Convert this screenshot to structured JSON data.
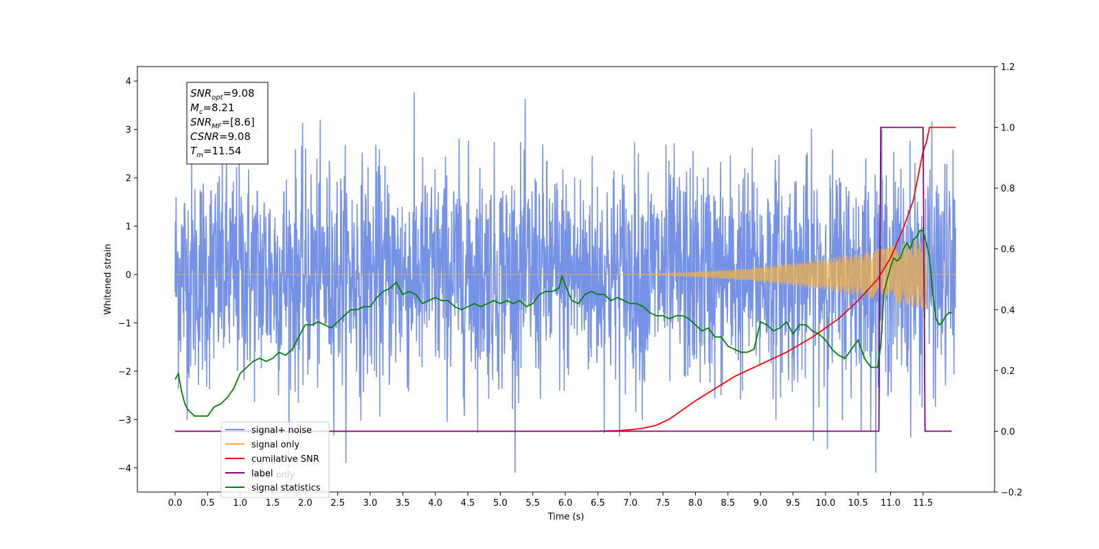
{
  "chart_data": {
    "type": "line",
    "xlabel": "Time (s)",
    "ylabel_left": "Whitened strain",
    "ylabel_right": "",
    "xlim": [
      -0.58,
      12.6
    ],
    "ylim_left": [
      -4.5,
      4.3
    ],
    "ylim_right": [
      -0.2,
      1.2
    ],
    "x_ticks": [
      0.0,
      0.5,
      1.0,
      1.5,
      2.0,
      2.5,
      3.0,
      3.5,
      4.0,
      4.5,
      5.0,
      5.5,
      6.0,
      6.5,
      7.0,
      7.5,
      8.0,
      8.5,
      9.0,
      9.5,
      10.0,
      10.5,
      11.0,
      11.5
    ],
    "x_tick_labels": [
      "0.0",
      "0.5",
      "1.0",
      "1.5",
      "2.0",
      "2.5",
      "3.0",
      "3.5",
      "4.0",
      "4.5",
      "5.0",
      "5.5",
      "6.0",
      "6.5",
      "7.0",
      "7.5",
      "8.0",
      "8.5",
      "9.0",
      "9.5",
      "10.0",
      "10.5",
      "11.0",
      "11.5"
    ],
    "y_left_ticks": [
      4,
      3,
      2,
      1,
      0,
      -1,
      -2,
      -3,
      -4
    ],
    "y_left_tick_labels": [
      "4",
      "3",
      "2",
      "1",
      "0",
      "−1",
      "−2",
      "−3",
      "−4"
    ],
    "y_right_ticks": [
      1.2,
      1.0,
      0.8,
      0.6,
      0.4,
      0.2,
      0.0,
      -0.2
    ],
    "y_right_tick_labels": [
      "1.2",
      "1.0",
      "0.8",
      "0.6",
      "0.4",
      "0.2",
      "0.0",
      "−0.2"
    ],
    "grid": false,
    "legend_position": "bottom-left",
    "annotation": {
      "lines": [
        {
          "base": "SNR",
          "sub": "opt",
          "rest": "=9.08"
        },
        {
          "base": "M",
          "sub": "c",
          "rest": "=8.21"
        },
        {
          "base": "SNR",
          "sub": "MF",
          "rest": "=[8.6]"
        },
        {
          "base": "CSNR",
          "sub": "",
          "rest": "=9.08"
        },
        {
          "base": "T",
          "sub": "m",
          "rest": "=11.54"
        }
      ]
    },
    "series": [
      {
        "name": "signal+ noise",
        "axis": "left",
        "color": "#6f8ce6",
        "note_noise_amplitude": 1.15,
        "x_range": [
          0.0,
          12.0
        ]
      },
      {
        "name": "signal only",
        "axis": "left",
        "color": "#f5b041",
        "chirp_start": 6.5,
        "chirp_end": 11.55,
        "peak_envelope": 0.75
      },
      {
        "name": "cumilative SNR",
        "axis": "right",
        "color": "#ff0000",
        "x": [
          0.0,
          6.5,
          6.8,
          7.0,
          7.2,
          7.4,
          7.6,
          7.8,
          8.0,
          8.3,
          8.6,
          9.0,
          9.4,
          9.8,
          10.2,
          10.5,
          10.8,
          11.0,
          11.2,
          11.35,
          11.5,
          11.55,
          11.6,
          12.0
        ],
        "values": [
          0.0,
          0.0,
          0.002,
          0.005,
          0.01,
          0.02,
          0.04,
          0.07,
          0.1,
          0.14,
          0.18,
          0.22,
          0.26,
          0.31,
          0.37,
          0.43,
          0.5,
          0.57,
          0.67,
          0.76,
          0.92,
          0.95,
          1.0,
          1.0
        ]
      },
      {
        "name": "label",
        "axis": "right",
        "color": "#800080",
        "x": [
          0.0,
          10.82,
          10.85,
          11.5,
          11.53,
          11.94
        ],
        "values": [
          0.0,
          0.0,
          1.0,
          1.0,
          0.0,
          0.0
        ]
      },
      {
        "name": "signal statistics",
        "axis": "right",
        "color": "#008000",
        "x": [
          0.0,
          0.05,
          0.1,
          0.15,
          0.2,
          0.3,
          0.4,
          0.5,
          0.6,
          0.7,
          0.8,
          0.9,
          1.0,
          1.1,
          1.2,
          1.3,
          1.4,
          1.5,
          1.6,
          1.7,
          1.8,
          1.9,
          2.0,
          2.1,
          2.2,
          2.3,
          2.4,
          2.5,
          2.6,
          2.7,
          2.8,
          2.9,
          3.0,
          3.1,
          3.2,
          3.3,
          3.4,
          3.5,
          3.6,
          3.7,
          3.8,
          3.9,
          4.0,
          4.1,
          4.2,
          4.3,
          4.4,
          4.5,
          4.6,
          4.7,
          4.8,
          4.9,
          5.0,
          5.1,
          5.2,
          5.3,
          5.4,
          5.5,
          5.6,
          5.7,
          5.8,
          5.9,
          5.95,
          6.0,
          6.1,
          6.2,
          6.3,
          6.4,
          6.5,
          6.6,
          6.7,
          6.8,
          6.9,
          7.0,
          7.1,
          7.2,
          7.3,
          7.4,
          7.5,
          7.6,
          7.7,
          7.8,
          7.9,
          8.0,
          8.1,
          8.2,
          8.3,
          8.4,
          8.5,
          8.6,
          8.7,
          8.8,
          8.9,
          9.0,
          9.1,
          9.2,
          9.3,
          9.4,
          9.5,
          9.6,
          9.7,
          9.8,
          9.9,
          10.0,
          10.1,
          10.2,
          10.3,
          10.4,
          10.5,
          10.6,
          10.7,
          10.8,
          10.85,
          10.9,
          11.0,
          11.05,
          11.1,
          11.15,
          11.2,
          11.25,
          11.3,
          11.35,
          11.4,
          11.45,
          11.5,
          11.55,
          11.6,
          11.65,
          11.7,
          11.75,
          11.8,
          11.85,
          11.9,
          11.95
        ],
        "values": [
          0.17,
          0.19,
          0.13,
          0.09,
          0.07,
          0.05,
          0.05,
          0.05,
          0.08,
          0.09,
          0.11,
          0.14,
          0.19,
          0.21,
          0.23,
          0.24,
          0.23,
          0.24,
          0.26,
          0.25,
          0.27,
          0.31,
          0.35,
          0.35,
          0.36,
          0.35,
          0.34,
          0.36,
          0.38,
          0.4,
          0.4,
          0.41,
          0.41,
          0.44,
          0.46,
          0.47,
          0.49,
          0.45,
          0.46,
          0.45,
          0.42,
          0.43,
          0.44,
          0.43,
          0.43,
          0.41,
          0.4,
          0.41,
          0.42,
          0.41,
          0.42,
          0.43,
          0.42,
          0.43,
          0.42,
          0.43,
          0.41,
          0.42,
          0.45,
          0.46,
          0.46,
          0.47,
          0.51,
          0.48,
          0.43,
          0.42,
          0.45,
          0.46,
          0.45,
          0.45,
          0.43,
          0.44,
          0.43,
          0.42,
          0.42,
          0.41,
          0.39,
          0.38,
          0.38,
          0.37,
          0.38,
          0.38,
          0.37,
          0.35,
          0.33,
          0.34,
          0.31,
          0.31,
          0.28,
          0.27,
          0.26,
          0.26,
          0.27,
          0.36,
          0.35,
          0.33,
          0.34,
          0.36,
          0.32,
          0.35,
          0.35,
          0.33,
          0.32,
          0.3,
          0.27,
          0.25,
          0.24,
          0.27,
          0.3,
          0.24,
          0.21,
          0.21,
          0.28,
          0.46,
          0.54,
          0.57,
          0.56,
          0.57,
          0.6,
          0.62,
          0.6,
          0.63,
          0.64,
          0.66,
          0.66,
          0.62,
          0.57,
          0.45,
          0.37,
          0.35,
          0.36,
          0.38,
          0.39,
          0.39
        ]
      }
    ],
    "legend": [
      {
        "label": "signal+ noise",
        "color": "#6f8ce6"
      },
      {
        "label": "signal only",
        "color": "#f5b041"
      },
      {
        "label": "cumilative SNR",
        "color": "#ff0000"
      },
      {
        "label": "label",
        "color": "#800080"
      },
      {
        "label": "signal statistics",
        "color": "#008000"
      }
    ],
    "legend_occluded_text": "label only"
  }
}
